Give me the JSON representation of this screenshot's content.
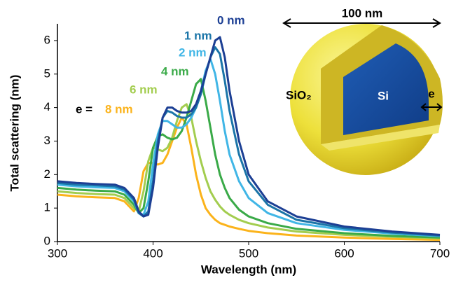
{
  "chart_data": {
    "type": "line",
    "xlabel": "Wavelength (nm)",
    "ylabel": "Total scattering (nm)",
    "xlim": [
      300,
      700
    ],
    "xticks": [
      300,
      400,
      500,
      600,
      700
    ],
    "ylim": [
      0,
      6.5
    ],
    "yticks": [
      0,
      1,
      2,
      3,
      4,
      5,
      6
    ],
    "x": [
      300,
      320,
      340,
      360,
      370,
      380,
      385,
      390,
      395,
      400,
      405,
      410,
      415,
      420,
      425,
      430,
      435,
      440,
      445,
      450,
      455,
      460,
      465,
      470,
      475,
      480,
      490,
      500,
      520,
      550,
      600,
      650,
      700
    ],
    "series": [
      {
        "name": "0 nm",
        "color": "#1c3f94",
        "values": [
          1.8,
          1.75,
          1.72,
          1.7,
          1.6,
          1.3,
          0.9,
          0.75,
          0.8,
          1.6,
          2.8,
          3.7,
          4.0,
          4.0,
          3.9,
          3.85,
          3.85,
          3.9,
          4.1,
          4.5,
          5.0,
          5.5,
          6.0,
          6.1,
          5.5,
          4.5,
          3.0,
          2.0,
          1.2,
          0.75,
          0.45,
          0.3,
          0.2
        ]
      },
      {
        "name": "1 nm",
        "color": "#1b75a8",
        "values": [
          1.75,
          1.7,
          1.68,
          1.65,
          1.55,
          1.25,
          0.85,
          0.75,
          0.9,
          1.8,
          3.0,
          3.7,
          3.9,
          3.85,
          3.75,
          3.7,
          3.7,
          3.8,
          4.0,
          4.4,
          5.0,
          5.5,
          5.8,
          5.6,
          4.8,
          3.9,
          2.6,
          1.8,
          1.1,
          0.65,
          0.4,
          0.27,
          0.18
        ]
      },
      {
        "name": "2 nm",
        "color": "#41b6e6",
        "values": [
          1.7,
          1.65,
          1.62,
          1.6,
          1.5,
          1.2,
          0.85,
          0.8,
          1.2,
          2.3,
          3.2,
          3.6,
          3.6,
          3.5,
          3.4,
          3.4,
          3.5,
          3.7,
          4.0,
          4.5,
          5.1,
          5.45,
          5.0,
          4.2,
          3.3,
          2.6,
          1.8,
          1.3,
          0.85,
          0.55,
          0.35,
          0.24,
          0.16
        ]
      },
      {
        "name": "4 nm",
        "color": "#3aaa48",
        "values": [
          1.6,
          1.55,
          1.52,
          1.5,
          1.4,
          1.1,
          0.85,
          1.0,
          1.8,
          2.8,
          3.15,
          3.2,
          3.1,
          3.05,
          3.1,
          3.3,
          3.7,
          4.2,
          4.7,
          4.85,
          4.2,
          3.4,
          2.6,
          2.0,
          1.6,
          1.3,
          0.95,
          0.75,
          0.55,
          0.38,
          0.25,
          0.17,
          0.12
        ]
      },
      {
        "name": "6 nm",
        "color": "#a3cd4f",
        "values": [
          1.5,
          1.45,
          1.42,
          1.4,
          1.3,
          1.0,
          0.9,
          1.5,
          2.4,
          2.8,
          2.75,
          2.7,
          2.8,
          3.1,
          3.6,
          4.0,
          4.1,
          3.7,
          3.0,
          2.4,
          1.9,
          1.5,
          1.25,
          1.05,
          0.9,
          0.8,
          0.65,
          0.55,
          0.42,
          0.3,
          0.2,
          0.14,
          0.1
        ]
      },
      {
        "name": "8 nm",
        "color": "#fbb31b",
        "values": [
          1.4,
          1.35,
          1.32,
          1.3,
          1.2,
          0.9,
          1.3,
          2.1,
          2.35,
          2.35,
          2.3,
          2.35,
          2.6,
          3.0,
          3.4,
          3.7,
          3.5,
          2.8,
          2.0,
          1.4,
          1.0,
          0.8,
          0.65,
          0.55,
          0.5,
          0.45,
          0.38,
          0.32,
          0.25,
          0.18,
          0.12,
          0.08,
          0.05
        ]
      }
    ],
    "annotations": {
      "e_prefix": "e =",
      "scale": "100 nm",
      "shell": "SiO₂",
      "core": "Si",
      "thickness": "e"
    }
  }
}
